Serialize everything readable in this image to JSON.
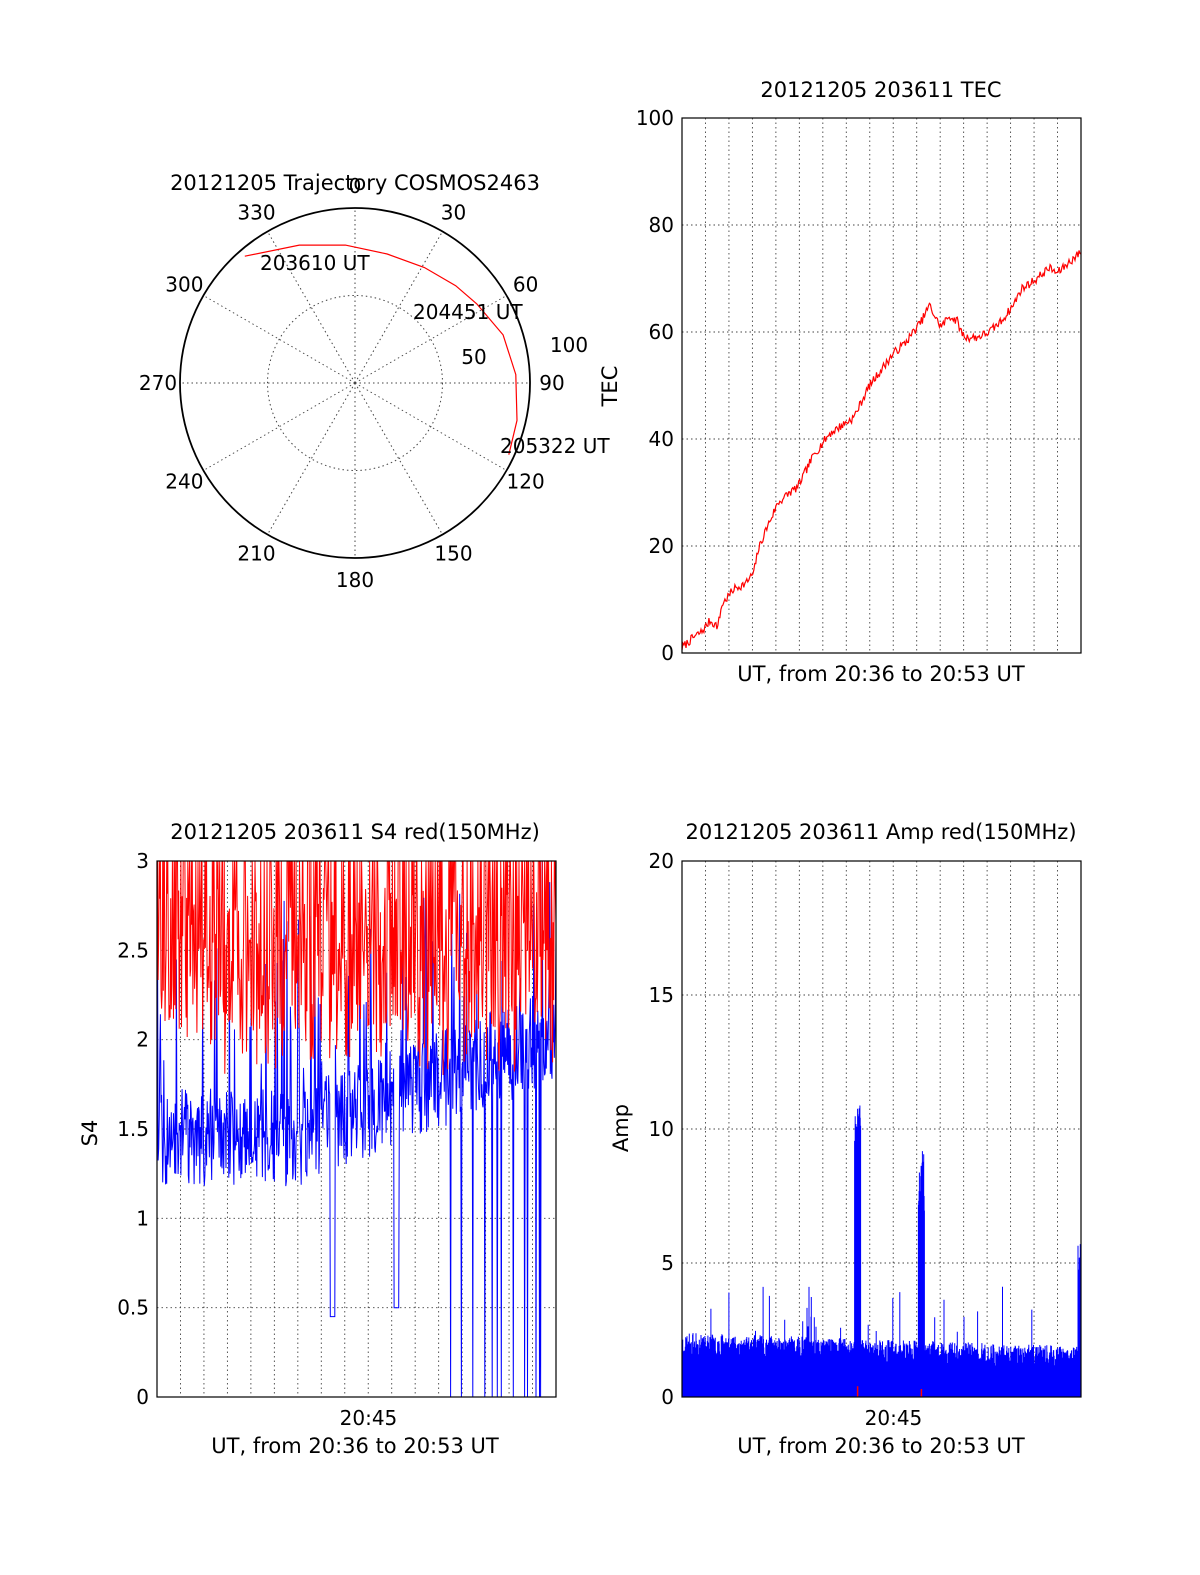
{
  "chart_data": [
    {
      "type": "polar",
      "title": "20121205 Trajectory COSMOS2463",
      "angle_labels": [
        "0",
        "30",
        "60",
        "90",
        "120",
        "150",
        "180",
        "210",
        "240",
        "270",
        "300",
        "330"
      ],
      "radial_labels": [
        "50",
        "100"
      ],
      "rlim": [
        0,
        100
      ],
      "grid": true,
      "series": [
        {
          "color": "#ff0000",
          "points": [
            {
              "az": 319,
              "r": 96
            },
            {
              "az": 338,
              "r": 85
            },
            {
              "az": 356,
              "r": 79
            },
            {
              "az": 14,
              "r": 76
            },
            {
              "az": 31,
              "r": 77
            },
            {
              "az": 46,
              "r": 80
            },
            {
              "az": 57,
              "r": 83
            },
            {
              "az": 72,
              "r": 89
            },
            {
              "az": 87,
              "r": 92
            },
            {
              "az": 103,
              "r": 95
            },
            {
              "az": 115,
              "r": 97
            }
          ]
        }
      ],
      "annotations": [
        "203610 UT",
        "204451 UT",
        "205322 UT"
      ]
    },
    {
      "type": "line",
      "title": "20121205 203611 TEC",
      "xlabel": "UT, from 20:36 to 20:53 UT",
      "ylabel": "TEC",
      "xlim": [
        0,
        1
      ],
      "ylim": [
        0,
        100
      ],
      "yticks": [
        "0",
        "20",
        "40",
        "60",
        "80",
        "100"
      ],
      "grid": true,
      "series": [
        {
          "color": "#ff0000",
          "x": [
            0.0,
            0.03,
            0.05,
            0.07,
            0.09,
            0.1,
            0.13,
            0.16,
            0.18,
            0.19,
            0.21,
            0.24,
            0.27,
            0.29,
            0.31,
            0.33,
            0.37,
            0.41,
            0.43,
            0.45,
            0.47,
            0.5,
            0.53,
            0.56,
            0.59,
            0.6,
            0.62,
            0.64,
            0.65,
            0.67,
            0.69,
            0.7,
            0.71,
            0.74,
            0.77,
            0.8,
            0.83,
            0.85,
            0.87,
            0.89,
            0.92,
            0.94,
            0.97,
            1.0
          ],
          "y": [
            1,
            3,
            4,
            6,
            5,
            9,
            12,
            13,
            15,
            19,
            23,
            28,
            30,
            31,
            34,
            37,
            41,
            43,
            44,
            47,
            50,
            53,
            56,
            58,
            61,
            62,
            65,
            62,
            61,
            63,
            62,
            60,
            59,
            59,
            60,
            62,
            65,
            68,
            69,
            70,
            72,
            71,
            73,
            75
          ]
        }
      ]
    },
    {
      "type": "line",
      "title": "20121205 203611 S4 red(150MHz)",
      "xlabel": "UT, from 20:36 to 20:53 UT",
      "ylabel": "S4",
      "xlim": [
        0,
        1
      ],
      "ylim": [
        0,
        3
      ],
      "xticks": [
        {
          "x": 0.53,
          "label": "20:45"
        }
      ],
      "yticks": [
        "0",
        "0.5",
        "1",
        "1.5",
        "2",
        "2.5",
        "3"
      ],
      "grid": true,
      "series": [
        {
          "color": "#0000ff",
          "approx_level": 1.45,
          "min_value": 0.0,
          "max_value": 3.0
        },
        {
          "color": "#ff0000",
          "approx_level": 2.4,
          "min_value": 1.8,
          "max_value": 3.0
        }
      ]
    },
    {
      "type": "line",
      "title": "20121205 203611 Amp red(150MHz)",
      "xlabel": "UT, from 20:36 to 20:53 UT",
      "ylabel": "Amp",
      "xlim": [
        0,
        1
      ],
      "ylim": [
        0,
        20
      ],
      "xticks": [
        {
          "x": 0.53,
          "label": "20:45"
        }
      ],
      "yticks": [
        "0",
        "5",
        "10",
        "15",
        "20"
      ],
      "grid": true,
      "series": [
        {
          "color": "#0000ff",
          "baseline_level": 1.2,
          "peaks": [
            {
              "x": 0.44,
              "y": 11.6
            },
            {
              "x": 0.6,
              "y": 9.2
            },
            {
              "x": 1.0,
              "y": 5.9
            }
          ]
        },
        {
          "color": "#ff0000",
          "peaks": [
            {
              "x": 0.44,
              "y": 0.4
            },
            {
              "x": 0.6,
              "y": 0.3
            }
          ]
        }
      ]
    }
  ]
}
